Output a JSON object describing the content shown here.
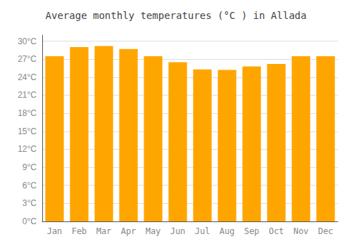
{
  "chart_data": {
    "type": "bar",
    "title": "Average monthly temperatures (°C ) in Allada",
    "categories": [
      "Jan",
      "Feb",
      "Mar",
      "Apr",
      "May",
      "Jun",
      "Jul",
      "Aug",
      "Sep",
      "Oct",
      "Nov",
      "Dec"
    ],
    "values": [
      27.5,
      29.0,
      29.2,
      28.7,
      27.5,
      26.5,
      25.3,
      25.2,
      25.8,
      26.2,
      27.5,
      27.5
    ],
    "color": "#FFA500",
    "ylim": [
      0,
      31
    ],
    "yticks": [
      {
        "value": 0,
        "label": "0°C"
      },
      {
        "value": 3,
        "label": "3°C"
      },
      {
        "value": 6,
        "label": "6°C"
      },
      {
        "value": 9,
        "label": "9°C"
      },
      {
        "value": 12,
        "label": "12°C"
      },
      {
        "value": 15,
        "label": "15°C"
      },
      {
        "value": 18,
        "label": "18°C"
      },
      {
        "value": 21,
        "label": "21°C"
      },
      {
        "value": 24,
        "label": "24°C"
      },
      {
        "value": 27,
        "label": "27°C"
      },
      {
        "value": 30,
        "label": "30°C"
      }
    ],
    "grid": true
  }
}
